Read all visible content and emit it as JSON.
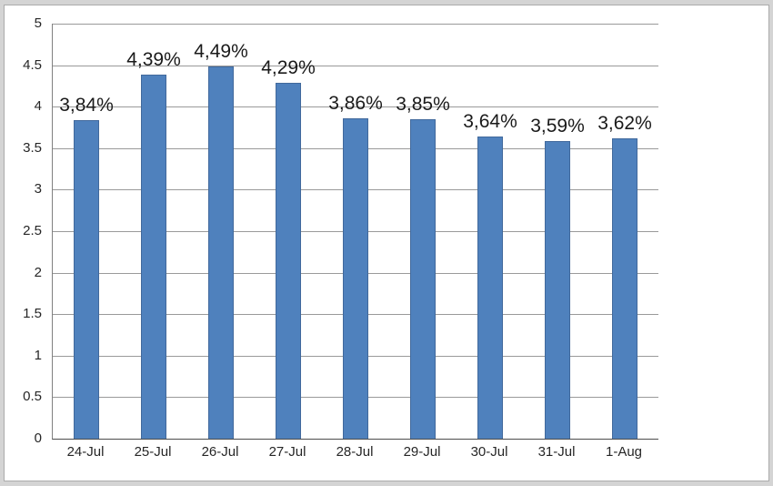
{
  "chart": {
    "outer_background": "#d4d4d4",
    "plot_background": "#ffffff",
    "border_color": "#ababab"
  },
  "chart_data": {
    "type": "bar",
    "title": "",
    "xlabel": "",
    "ylabel": "",
    "categories": [
      "24-Jul",
      "25-Jul",
      "26-Jul",
      "27-Jul",
      "28-Jul",
      "29-Jul",
      "30-Jul",
      "31-Jul",
      "1-Aug"
    ],
    "values": [
      3.84,
      4.39,
      4.49,
      4.29,
      3.86,
      3.85,
      3.64,
      3.59,
      3.62
    ],
    "data_labels": [
      "3,84%",
      "4,39%",
      "4,49%",
      "4,29%",
      "3,86%",
      "3,85%",
      "3,64%",
      "3,59%",
      "3,62%"
    ],
    "ylim": [
      0,
      5
    ],
    "yticks": [
      0,
      0.5,
      1,
      1.5,
      2,
      2.5,
      3,
      3.5,
      4,
      4.5,
      5
    ],
    "ytick_labels": [
      "0",
      "0.5",
      "1",
      "1.5",
      "2",
      "2.5",
      "3",
      "3.5",
      "4",
      "4.5",
      "5"
    ],
    "grid": true,
    "legend": "none",
    "bar_color": "#4f81bd",
    "bar_border_color": "#41699c",
    "gridline_color": "#9a9a9a",
    "axis_color": "#808080",
    "label_color": "#1a1a1a"
  }
}
